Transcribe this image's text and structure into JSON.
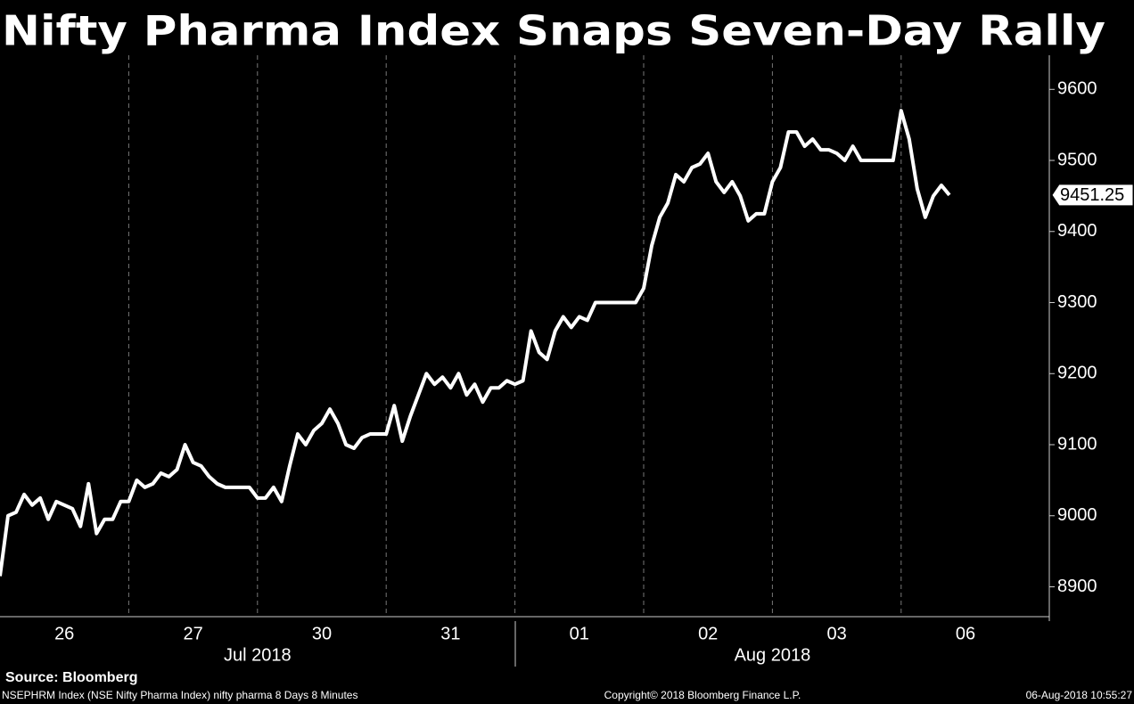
{
  "chart_data": {
    "type": "line",
    "title": "Nifty Pharma Index Snaps Seven-Day Rally",
    "categories": [
      "26",
      "27",
      "30",
      "31",
      "01",
      "02",
      "03",
      "06"
    ],
    "months": [
      "Jul 2018",
      "Aug 2018"
    ],
    "color": "#ffffff",
    "values": [
      [
        8915,
        9000,
        9005,
        9030,
        9015,
        9025,
        8995,
        9020,
        9015,
        9010,
        8985,
        9045,
        8975,
        8995,
        8995,
        9020
      ],
      [
        9020,
        9050,
        9040,
        9045,
        9060,
        9055,
        9065,
        9100,
        9075,
        9070,
        9055,
        9045,
        9040,
        9040,
        9040,
        9040
      ],
      [
        9025,
        9025,
        9040,
        9020,
        9070,
        9115,
        9100,
        9120,
        9130,
        9150,
        9130,
        9100,
        9095,
        9110,
        9115,
        9115
      ],
      [
        9115,
        9155,
        9105,
        9140,
        9170,
        9200,
        9185,
        9195,
        9180,
        9200,
        9170,
        9185,
        9160,
        9180,
        9180,
        9190
      ],
      [
        9185,
        9190,
        9260,
        9230,
        9220,
        9260,
        9280,
        9265,
        9280,
        9275,
        9300,
        9300,
        9300,
        9300,
        9300,
        9300
      ],
      [
        9320,
        9380,
        9420,
        9440,
        9480,
        9470,
        9490,
        9495,
        9510,
        9470,
        9455,
        9470,
        9450,
        9415,
        9425,
        9425
      ],
      [
        9470,
        9490,
        9540,
        9540,
        9520,
        9530,
        9515,
        9515,
        9510,
        9500,
        9520,
        9500,
        9500,
        9500,
        9500,
        9500
      ],
      [
        9570,
        9530,
        9460,
        9420,
        9450,
        9465,
        9451.25
      ]
    ],
    "ylim": [
      8858,
      9648
    ],
    "yticks": [
      8900,
      9000,
      9100,
      9200,
      9300,
      9400,
      9500,
      9600
    ],
    "source": "Source: Bloomberg",
    "footer_left": "NSEPHRM Index (NSE Nifty Pharma Index) nifty pharma 8 Days 8 Minutes",
    "footer_center": "Copyright© 2018 Bloomberg Finance L.P.",
    "footer_right": "06-Aug-2018 10:55:27"
  }
}
